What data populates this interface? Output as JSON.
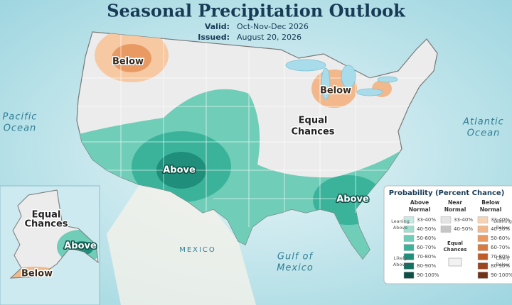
{
  "header": {
    "title": "Seasonal Precipitation Outlook",
    "valid_label": "Valid:",
    "valid": "Oct-Nov-Dec 2026",
    "issued_label": "Issued:",
    "issued": "August 20, 2026"
  },
  "places": [
    {
      "lines": [
        "Pacific",
        "Ocean"
      ]
    },
    {
      "lines": [
        "Atlantic",
        "Ocean"
      ]
    },
    {
      "lines": [
        "Gulf of",
        "Mexico"
      ]
    },
    {
      "lines": [
        "MEXICO"
      ]
    }
  ],
  "regions": [
    {
      "lines": [
        "Below"
      ]
    },
    {
      "lines": [
        "Below"
      ]
    },
    {
      "lines": [
        "Equal",
        "Chances"
      ]
    },
    {
      "lines": [
        "Above"
      ]
    },
    {
      "lines": [
        "Above"
      ]
    }
  ],
  "alaska": {
    "regions": [
      {
        "lines": [
          "Equal",
          "Chances"
        ]
      },
      {
        "lines": [
          "Above"
        ]
      },
      {
        "lines": [
          "Below"
        ]
      }
    ]
  },
  "legend": {
    "title": "Probability (Percent Chance)",
    "above": {
      "heading": [
        "Above",
        "Normal"
      ],
      "groups": [
        [
          "Leaning",
          "Above"
        ],
        [
          "Likely",
          "Above"
        ]
      ],
      "entries": [
        {
          "label": "33-40%",
          "color": "#c4ebe2"
        },
        {
          "label": "40-50%",
          "color": "#9edfd0"
        },
        {
          "label": "50-60%",
          "color": "#6fcdb8"
        },
        {
          "label": "60-70%",
          "color": "#3bb39b"
        },
        {
          "label": "70-80%",
          "color": "#1f8f7b"
        },
        {
          "label": "80-90%",
          "color": "#137062"
        },
        {
          "label": "90-100%",
          "color": "#0b4f45"
        }
      ]
    },
    "near": {
      "heading": [
        "Near",
        "Normal"
      ],
      "entries": [
        {
          "label": "33-40%",
          "color": "#e4e4e4"
        },
        {
          "label": "40-50%",
          "color": "#c6c6c6"
        }
      ],
      "equal": {
        "lines": [
          "Equal",
          "Chances"
        ],
        "color": "#f2f2f2"
      }
    },
    "below": {
      "heading": [
        "Below",
        "Normal"
      ],
      "groups": [
        [
          "Leaning",
          "Below"
        ],
        [
          "Likely",
          "Below"
        ]
      ],
      "entries": [
        {
          "label": "33-40%",
          "color": "#f7d3b6"
        },
        {
          "label": "40-50%",
          "color": "#f2b88c"
        },
        {
          "label": "50-60%",
          "color": "#e99a63"
        },
        {
          "label": "60-70%",
          "color": "#d97a3e"
        },
        {
          "label": "70-80%",
          "color": "#bd5e2a"
        },
        {
          "label": "80-90%",
          "color": "#9a4620"
        },
        {
          "label": "90-100%",
          "color": "#723217"
        }
      ]
    }
  }
}
